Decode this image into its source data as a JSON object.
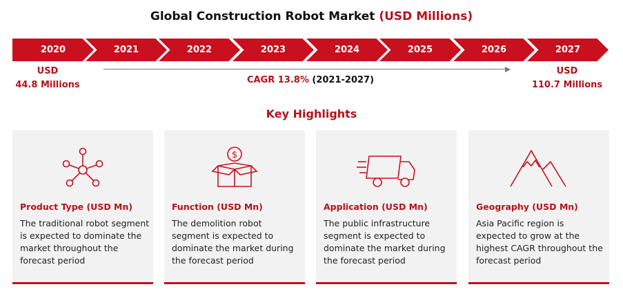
{
  "title": {
    "main": "Global Construction Robot Market",
    "accent": "(USD Millions)"
  },
  "timeline": {
    "years": [
      "2020",
      "2021",
      "2022",
      "2023",
      "2024",
      "2025",
      "2026",
      "2027"
    ]
  },
  "start_value": {
    "line1": "USD",
    "line2": "44.8 Millions"
  },
  "end_value": {
    "line1": "USD",
    "line2": "110.7 Millions"
  },
  "cagr": {
    "label": "CAGR 13.8%",
    "period": "(2021-2027)"
  },
  "highlights_title": "Key Highlights",
  "cards": [
    {
      "icon": "network-icon",
      "title": "Product Type (USD Mn)",
      "text": "The traditional robot segment is expected to dominate the market throughout the forecast period"
    },
    {
      "icon": "dollar-box-icon",
      "title": "Function (USD Mn)",
      "text": "The demolition robot segment is expected to dominate the market during the forecast period"
    },
    {
      "icon": "truck-icon",
      "title": "Application (USD Mn)",
      "text": "The public infrastructure segment is expected to dominate the market during the forecast period"
    },
    {
      "icon": "mountain-icon",
      "title": "Geography (USD Mn)",
      "text": "Asia Pacific region is expected to grow at the highest CAGR throughout the forecast period"
    }
  ],
  "colors": {
    "accent": "#c8101e",
    "card_bg": "#f2f2f2"
  }
}
